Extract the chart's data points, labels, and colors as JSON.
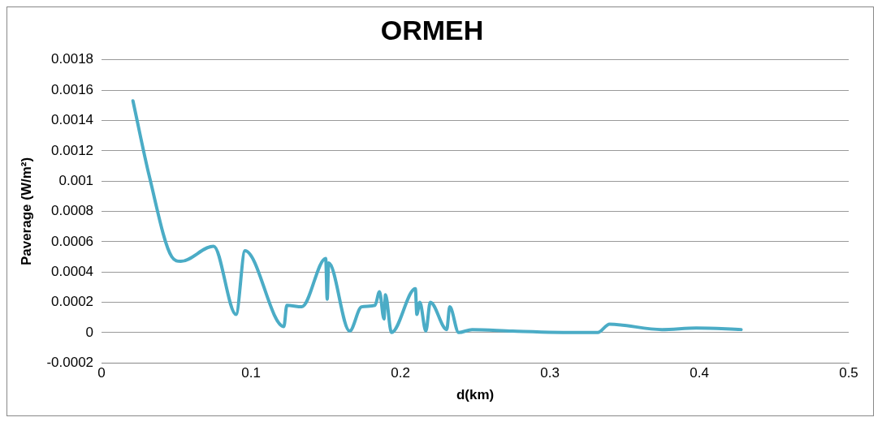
{
  "chart_data": {
    "type": "line",
    "title": "ORMEH",
    "xlabel": "d(km)",
    "ylabel": "Paverage (W/m²)",
    "x": [
      0.021,
      0.032,
      0.047,
      0.053,
      0.075,
      0.09,
      0.096,
      0.122,
      0.124,
      0.134,
      0.15,
      0.151,
      0.152,
      0.166,
      0.174,
      0.183,
      0.186,
      0.189,
      0.19,
      0.194,
      0.21,
      0.211,
      0.213,
      0.217,
      0.22,
      0.231,
      0.233,
      0.239,
      0.248,
      0.275,
      0.32,
      0.332,
      0.34,
      0.375,
      0.398,
      0.428
    ],
    "series": [
      {
        "color": "#4bacc6",
        "values": [
          0.00153,
          0.00103,
          0.0005,
          0.00047,
          0.00057,
          0.00012,
          0.00054,
          4e-05,
          0.00018,
          0.00017,
          0.00049,
          0.00022,
          0.00046,
          1e-05,
          0.00017,
          0.00018,
          0.00027,
          9e-05,
          0.00025,
          0,
          0.00029,
          0.00012,
          0.0002,
          1e-05,
          0.0002,
          2e-05,
          0.00017,
          0,
          2e-05,
          1e-05,
          0,
          0,
          5.5e-05,
          2e-05,
          3e-05,
          2e-05
        ]
      }
    ],
    "xlim": [
      0,
      0.5
    ],
    "xticks": [
      0,
      0.1,
      0.2,
      0.3,
      0.4,
      0.5
    ],
    "ylim": [
      -0.0002,
      0.0018
    ],
    "yticks": [
      -0.0002,
      0,
      0.0002,
      0.0004,
      0.0006,
      0.0008,
      0.001,
      0.0012,
      0.0014,
      0.0016,
      0.0018
    ],
    "grid": "y",
    "legend": false,
    "marker": "none",
    "line_style": "solid"
  }
}
